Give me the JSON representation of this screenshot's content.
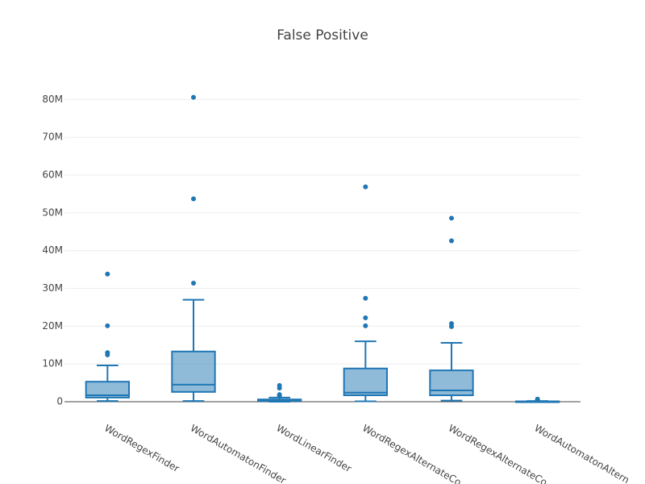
{
  "chart_data": {
    "type": "box",
    "title": "False Positive",
    "categories": [
      "WordRegexFinder",
      "WordAutomatonFinder",
      "WordLinearFinder",
      "WordRegexAlternateCo",
      "WordRegexAlternateCo",
      "WordAutomatonAltern"
    ],
    "color": "#1f77b4",
    "boxes": [
      {
        "min": 200000,
        "q1": 1100000,
        "median": 1700000,
        "q3": 5300000,
        "max": 9600000,
        "outliers": [
          12400000,
          13000000,
          20100000,
          33800000
        ]
      },
      {
        "min": 200000,
        "q1": 2600000,
        "median": 4500000,
        "q3": 13300000,
        "max": 27000000,
        "outliers": [
          31400000,
          53700000,
          80600000
        ]
      },
      {
        "min": 0,
        "q1": 200000,
        "median": 300000,
        "q3": 600000,
        "max": 1100000,
        "outliers": [
          1500000,
          1900000,
          3600000,
          4300000
        ]
      },
      {
        "min": 100000,
        "q1": 1700000,
        "median": 2400000,
        "q3": 8800000,
        "max": 16000000,
        "outliers": [
          20100000,
          22200000,
          27400000,
          56900000
        ]
      },
      {
        "min": 300000,
        "q1": 1700000,
        "median": 3000000,
        "q3": 8300000,
        "max": 15600000,
        "outliers": [
          19900000,
          20700000,
          42600000,
          48600000
        ]
      },
      {
        "min": 0,
        "q1": 20000,
        "median": 50000,
        "q3": 100000,
        "max": 200000,
        "outliers": [
          500000,
          700000
        ]
      }
    ],
    "ylim": [
      0,
      85000000
    ],
    "yticks": [
      0,
      {
        "value": 10000000,
        "label": "10M"
      },
      {
        "value": 20000000,
        "label": "20M"
      },
      {
        "value": 30000000,
        "label": "30M"
      },
      {
        "value": 40000000,
        "label": "40M"
      },
      {
        "value": 50000000,
        "label": "50M"
      },
      {
        "value": 60000000,
        "label": "60M"
      },
      {
        "value": 70000000,
        "label": "70M"
      },
      {
        "value": 80000000,
        "label": "80M"
      }
    ],
    "grid": true
  }
}
